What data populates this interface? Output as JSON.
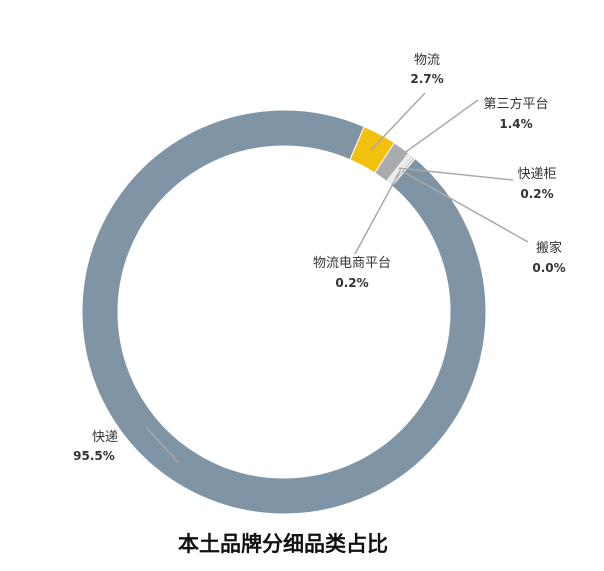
{
  "chart_data": {
    "type": "pie",
    "title": "本土品牌分细品类占比",
    "donut": true,
    "legend": "none",
    "slices": [
      {
        "name": "快递",
        "label": "95.5%",
        "value": 95.5,
        "color": "#7f94a4"
      },
      {
        "name": "物流",
        "label": "2.7%",
        "value": 2.7,
        "color": "#f2c10f"
      },
      {
        "name": "第三方平台",
        "label": "1.4%",
        "value": 1.4,
        "color": "#a8acaf"
      },
      {
        "name": "快递柜",
        "label": "0.2%",
        "value": 0.2,
        "color": "#e8e3d6"
      },
      {
        "name": "物流电商平台",
        "label": "0.2%",
        "value": 0.2,
        "color": "#d9d9d9"
      },
      {
        "name": "搬家",
        "label": "0.0%",
        "value": 0.0,
        "color": "#c8c8c8"
      }
    ]
  }
}
